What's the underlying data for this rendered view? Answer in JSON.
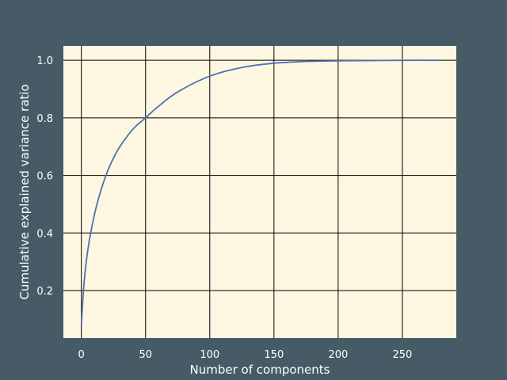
{
  "colors": {
    "figure_background": "#475b67",
    "plot_background": "#fdf6e1",
    "grid": "#000000",
    "line": "#4c72b0",
    "text": "#ffffff"
  },
  "chart_data": {
    "type": "line",
    "title": "",
    "xlabel": "Number of components",
    "ylabel": "Cumulative explained variance ratio",
    "xlim": [
      -14,
      292
    ],
    "ylim": [
      0.035,
      1.05
    ],
    "grid": true,
    "x_ticks": [
      0,
      50,
      100,
      150,
      200,
      250
    ],
    "y_ticks": [
      0.2,
      0.4,
      0.6,
      0.8,
      1.0
    ],
    "x_tick_labels": [
      "0",
      "50",
      "100",
      "150",
      "200",
      "250"
    ],
    "y_tick_labels": [
      "0.2",
      "0.4",
      "0.6",
      "0.8",
      "1.0"
    ],
    "series": [
      {
        "x": [
          0,
          2,
          5,
          10,
          15,
          20,
          25,
          30,
          40,
          50,
          60,
          75,
          100,
          125,
          150,
          175,
          200,
          225,
          250,
          278
        ],
        "y": [
          0.08,
          0.22,
          0.34,
          0.46,
          0.545,
          0.61,
          0.66,
          0.7,
          0.76,
          0.8,
          0.84,
          0.89,
          0.945,
          0.975,
          0.99,
          0.996,
          0.998,
          0.999,
          1.0,
          1.0
        ]
      }
    ]
  }
}
